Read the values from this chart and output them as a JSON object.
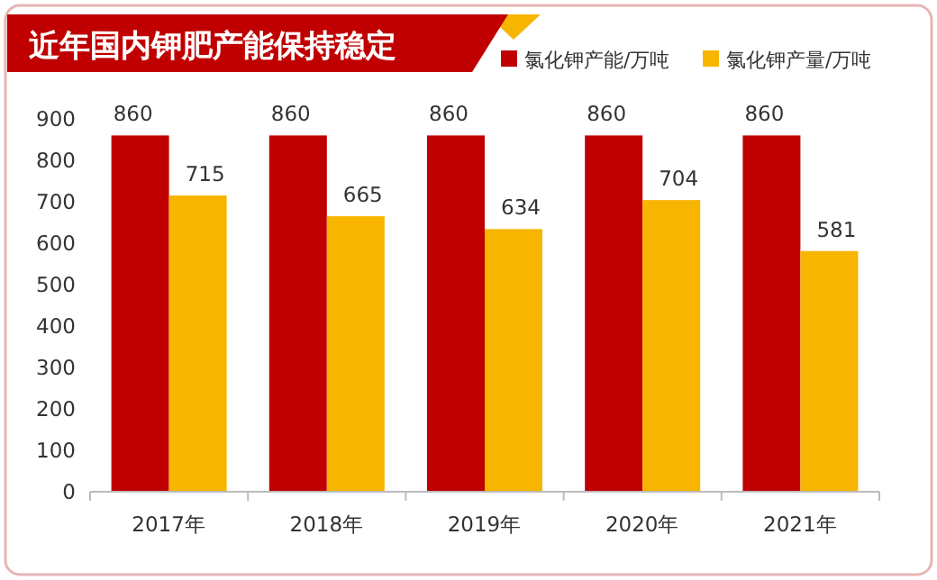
{
  "chart_data": {
    "type": "bar",
    "title": "近年国内钾肥产能保持稳定",
    "categories": [
      "2017年",
      "2018年",
      "2019年",
      "2020年",
      "2021年"
    ],
    "series": [
      {
        "name": "氯化钾产能/万吨",
        "color": "#c00000",
        "values": [
          860,
          860,
          860,
          860,
          860
        ]
      },
      {
        "name": "氯化钾产量/万吨",
        "color": "#f7b500",
        "values": [
          715,
          665,
          634,
          704,
          581
        ]
      }
    ],
    "ylim": [
      0,
      900
    ],
    "yticks": [
      0,
      100,
      200,
      300,
      400,
      500,
      600,
      700,
      800,
      900
    ],
    "data_labels": true,
    "legend": "top right",
    "grid": false
  }
}
